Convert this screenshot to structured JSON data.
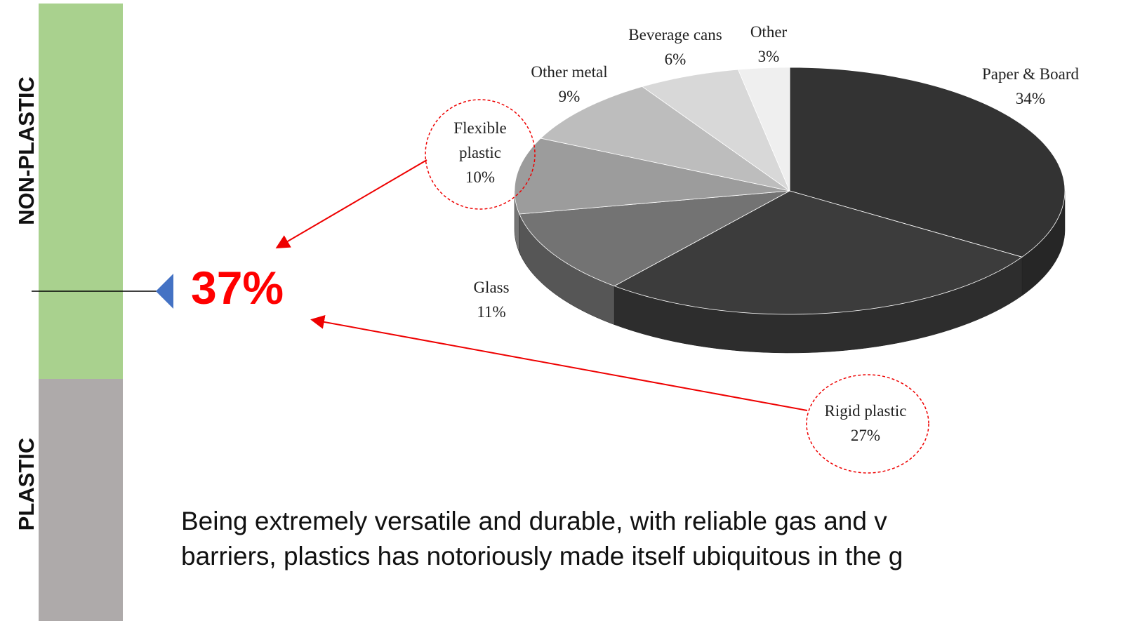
{
  "chart_data": {
    "type": "pie",
    "categories": [
      "Paper & Board",
      "Rigid plastic",
      "Glass",
      "Flexible plastic",
      "Other metal",
      "Beverage cans",
      "Other"
    ],
    "values": [
      34,
      27,
      11,
      10,
      9,
      6,
      3
    ],
    "value_labels": [
      "34%",
      "27%",
      "11%",
      "10%",
      "9%",
      "6%",
      "3%"
    ],
    "colors": [
      "#333333",
      "#3c3c3c",
      "#737373",
      "#9c9c9c",
      "#bdbdbd",
      "#d8d8d8",
      "#efefef"
    ]
  },
  "sidebar": {
    "top_label": "NON-PLASTIC",
    "bottom_label": "PLASTIC"
  },
  "callout": "37%",
  "paragraph": [
    "Being extremely versatile and durable, with reliable gas and v",
    "barriers, plastics has notoriously made itself ubiquitous in the g"
  ]
}
